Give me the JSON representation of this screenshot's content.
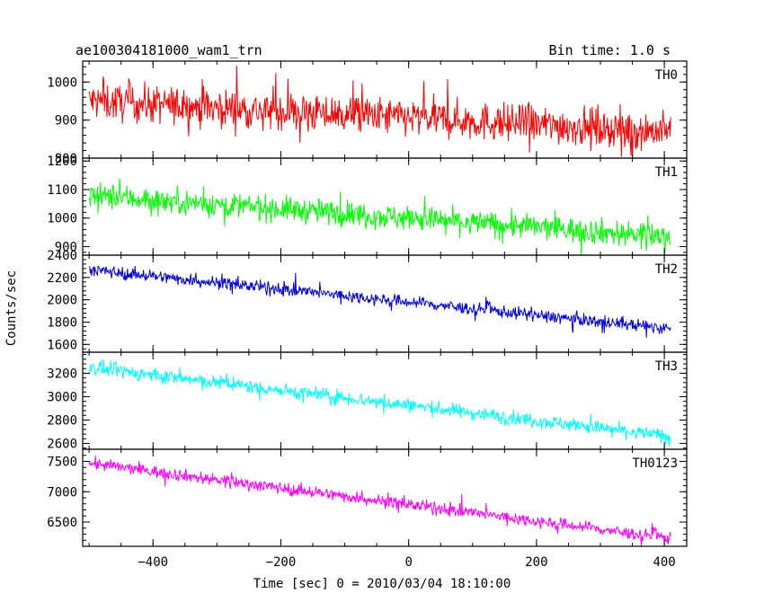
{
  "header": {
    "title": "ae100304181000_wam1_trn",
    "bin_time": "Bin time: 1.0 s"
  },
  "axes": {
    "xlabel": "Time [sec] 0 = 2010/03/04 18:10:00",
    "ylabel": "Counts/sec"
  },
  "chart_data": {
    "type": "line",
    "title": "ae100304181000_wam1_trn",
    "subtitle": "Bin time: 1.0 s",
    "xlabel": "Time [sec] 0 = 2010/03/04 18:10:00",
    "ylabel": "Counts/sec",
    "xlim": [
      -510,
      435
    ],
    "x_ticks": [
      -400,
      -200,
      0,
      200,
      400
    ],
    "x_tick_labels": [
      "−400",
      "−200",
      "0",
      "200",
      "400"
    ],
    "x_range": [
      -500,
      410
    ],
    "grid": false,
    "legend": "none",
    "panels": [
      {
        "name": "TH0",
        "color": "#ff0000",
        "ylim": [
          800,
          1055
        ],
        "y_ticks": [
          800,
          900,
          1000
        ],
        "y_tick_labels": [
          "800",
          "900",
          "1000"
        ],
        "trend": {
          "x": [
            -500,
            410
          ],
          "y": [
            950,
            870
          ]
        },
        "noise_amplitude": 45
      },
      {
        "name": "TH1",
        "color": "#00ff00",
        "ylim": [
          870,
          1210
        ],
        "y_ticks": [
          900,
          1000,
          1100,
          1200
        ],
        "y_tick_labels": [
          "900",
          "1000",
          "1100",
          "1200"
        ],
        "trend": {
          "x": [
            -500,
            410
          ],
          "y": [
            1080,
            935
          ]
        },
        "noise_amplitude": 40
      },
      {
        "name": "TH2",
        "color": "#0000dd",
        "ylim": [
          1530,
          2400
        ],
        "y_ticks": [
          1600,
          1800,
          2000,
          2200,
          2400
        ],
        "y_tick_labels": [
          "1600",
          "1800",
          "2000",
          "2200",
          "2400"
        ],
        "trend": {
          "x": [
            -500,
            410
          ],
          "y": [
            2270,
            1740
          ]
        },
        "noise_amplitude": 50
      },
      {
        "name": "TH3",
        "color": "#00ffff",
        "ylim": [
          2550,
          3380
        ],
        "y_ticks": [
          2600,
          2800,
          3000,
          3200
        ],
        "y_tick_labels": [
          "2600",
          "2800",
          "3000",
          "3200"
        ],
        "trend": {
          "x": [
            -500,
            410
          ],
          "y": [
            3250,
            2660
          ]
        },
        "noise_amplitude": 55
      },
      {
        "name": "TH0123",
        "color": "#ff00ff",
        "ylim": [
          6100,
          7700
        ],
        "y_ticks": [
          6500,
          7000,
          7500
        ],
        "y_tick_labels": [
          "6500",
          "7000",
          "7500"
        ],
        "trend": {
          "x": [
            -500,
            410
          ],
          "y": [
            7470,
            6230
          ]
        },
        "noise_amplitude": 90
      }
    ]
  }
}
